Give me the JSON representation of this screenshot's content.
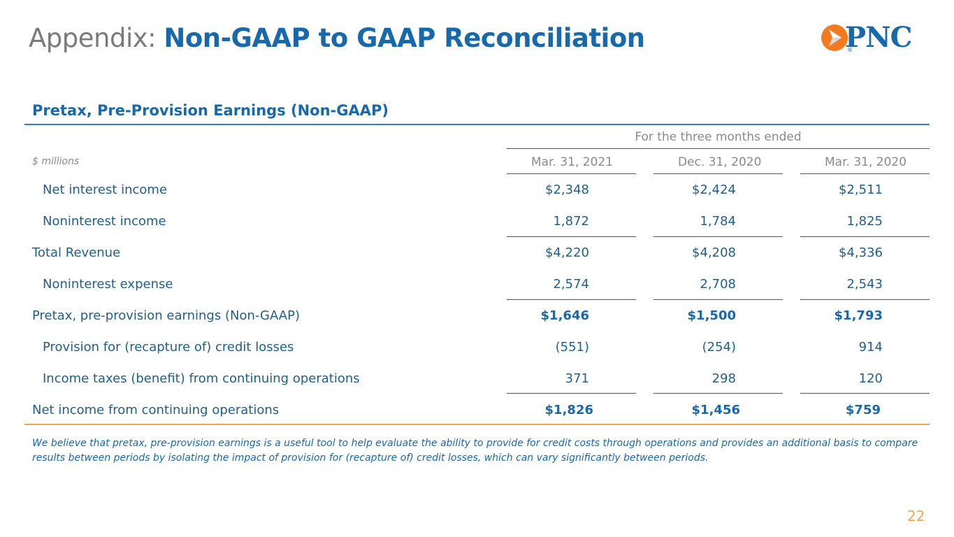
{
  "title": {
    "prefix": "Appendix:",
    "main": "Non-GAAP to GAAP Reconciliation"
  },
  "logo": {
    "text": "PNC",
    "registered": "®",
    "accent_color": "#f47a20",
    "brand_color": "#1769ab"
  },
  "section_title": "Pretax, Pre-Provision Earnings (Non-GAAP)",
  "table": {
    "group_header": "For the three months ended",
    "units": "$ millions",
    "columns": [
      "Mar. 31, 2021",
      "Dec. 31, 2020",
      "Mar. 31, 2020"
    ],
    "rows": [
      {
        "label": "Net interest income",
        "values": [
          "$2,348",
          "$2,424",
          "$2,511"
        ]
      },
      {
        "label": "Noninterest income",
        "values": [
          "1,872",
          "1,784",
          "1,825"
        ]
      },
      {
        "label": "Total Revenue",
        "values": [
          "$4,220",
          "$4,208",
          "$4,336"
        ]
      },
      {
        "label": "Noninterest expense",
        "values": [
          "2,574",
          "2,708",
          "2,543"
        ]
      },
      {
        "label": "Pretax, pre-provision earnings (Non-GAAP)",
        "values": [
          "$1,646",
          "$1,500",
          "$1,793"
        ]
      },
      {
        "label": "Provision for (recapture of) credit losses",
        "values": [
          "(551)",
          "(254)",
          "914"
        ]
      },
      {
        "label": "Income taxes (benefit) from continuing operations",
        "values": [
          "371",
          "298",
          "120"
        ]
      },
      {
        "label": "Net income from continuing operations",
        "values": [
          "$1,826",
          "$1,456",
          "$759"
        ]
      }
    ]
  },
  "footnote": "We believe that pretax, pre-provision earnings is a useful tool to help evaluate the ability to provide for credit costs through operations and provides an additional basis to compare results between periods by isolating the impact of provision for (recapture of) credit losses, which can vary significantly between periods.",
  "page_number": "22"
}
